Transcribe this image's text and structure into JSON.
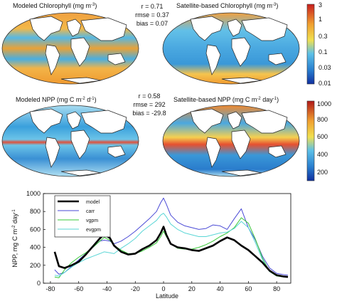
{
  "colors": {
    "model": "#000000",
    "carr": "#4a4ad6",
    "vgpm": "#37c837",
    "evgpm": "#5ad6d6",
    "ocean_chl_hi": "#f29a2e",
    "ocean_low": "#3aa0dc",
    "land": "#ffffff"
  },
  "panels": {
    "chl_model_title": "Modeled Chlorophyll (mg m",
    "chl_model_title_sup": "-3",
    "chl_model_title_end": ")",
    "chl_sat_title": "Satellite-based Chlorophyll (mg m",
    "chl_sat_title_sup": "-3",
    "chl_sat_title_end": ")",
    "npp_model_title": "Modeled NPP (mg C m",
    "npp_model_title_sup1": "-2",
    "npp_model_title_mid": " d",
    "npp_model_title_sup2": "-1",
    "npp_model_title_end": ")",
    "npp_sat_title": "Satellite-based NPP (mg C m",
    "npp_sat_title_sup1": "-2",
    "npp_sat_title_mid": " day",
    "npp_sat_title_sup2": "-1",
    "npp_sat_title_end": ")"
  },
  "stats": {
    "chl_r": "r = 0.71",
    "chl_rmse": "rmse = 0.37",
    "chl_bias": "bias = 0.07",
    "npp_r": "r = 0.58",
    "npp_rmse": "rmse = 292",
    "npp_bias": "bias = -29.8"
  },
  "colorbars": {
    "chl_ticks": [
      "3",
      "1",
      "0.3",
      "0.1",
      "0.03",
      "0.01"
    ],
    "chl_scale": "log",
    "npp_ticks": [
      "1000",
      "800",
      "600",
      "400",
      "200"
    ],
    "npp_scale": "linear"
  },
  "chart_data": {
    "type": "line",
    "xlabel": "Latitude",
    "ylabel_main": "NPP, mg C m",
    "ylabel_sup1": "-2",
    "ylabel_mid": " day",
    "ylabel_sup2": "-1",
    "xlim": [
      -85,
      90
    ],
    "ylim": [
      0,
      1000
    ],
    "xticks": [
      -80,
      -60,
      -40,
      -20,
      0,
      20,
      40,
      60,
      80
    ],
    "yticks": [
      0,
      200,
      400,
      600,
      800,
      1000
    ],
    "legend_position": "top-left",
    "series": [
      {
        "name": "model",
        "color": "#000000",
        "width": 2.6,
        "x": [
          -77,
          -74,
          -70,
          -65,
          -60,
          -55,
          -50,
          -45,
          -42,
          -38,
          -35,
          -30,
          -25,
          -20,
          -15,
          -10,
          -5,
          -2,
          0,
          2,
          5,
          10,
          15,
          20,
          25,
          30,
          35,
          40,
          45,
          50,
          55,
          60,
          65,
          70,
          75,
          80,
          85,
          88
        ],
        "y": [
          350,
          190,
          170,
          200,
          240,
          320,
          410,
          500,
          545,
          505,
          420,
          350,
          320,
          330,
          380,
          420,
          480,
          560,
          630,
          540,
          440,
          400,
          390,
          370,
          360,
          390,
          420,
          470,
          510,
          480,
          420,
          370,
          300,
          230,
          140,
          90,
          75,
          70
        ]
      },
      {
        "name": "carr",
        "color": "#4a4ad6",
        "width": 1,
        "x": [
          -77,
          -74,
          -70,
          -65,
          -60,
          -55,
          -50,
          -45,
          -42,
          -38,
          -35,
          -30,
          -25,
          -20,
          -15,
          -10,
          -5,
          -2,
          0,
          2,
          5,
          10,
          15,
          20,
          25,
          30,
          35,
          40,
          45,
          50,
          55,
          60,
          65,
          70,
          75,
          80,
          85,
          88
        ],
        "y": [
          150,
          100,
          120,
          190,
          260,
          330,
          400,
          470,
          480,
          470,
          440,
          470,
          520,
          580,
          650,
          720,
          800,
          900,
          950,
          880,
          760,
          680,
          640,
          620,
          600,
          610,
          650,
          640,
          600,
          720,
          830,
          620,
          480,
          300,
          170,
          110,
          95,
          90
        ]
      },
      {
        "name": "vgpm",
        "color": "#37c837",
        "width": 1,
        "x": [
          -77,
          -74,
          -70,
          -65,
          -60,
          -55,
          -50,
          -45,
          -42,
          -38,
          -35,
          -30,
          -25,
          -20,
          -15,
          -10,
          -5,
          -2,
          0,
          2,
          5,
          10,
          15,
          20,
          25,
          30,
          35,
          40,
          45,
          50,
          55,
          60,
          65,
          70,
          75,
          80,
          85,
          88
        ],
        "y": [
          70,
          60,
          150,
          230,
          290,
          340,
          400,
          470,
          510,
          480,
          420,
          370,
          330,
          330,
          360,
          400,
          450,
          520,
          580,
          520,
          440,
          390,
          380,
          380,
          400,
          430,
          470,
          520,
          560,
          620,
          730,
          670,
          490,
          280,
          130,
          80,
          70,
          70
        ]
      },
      {
        "name": "evgpm",
        "color": "#5ad6d6",
        "width": 1,
        "x": [
          -77,
          -74,
          -70,
          -65,
          -60,
          -55,
          -50,
          -45,
          -42,
          -38,
          -35,
          -30,
          -25,
          -20,
          -15,
          -10,
          -5,
          -2,
          0,
          2,
          5,
          10,
          15,
          20,
          25,
          30,
          35,
          40,
          45,
          50,
          55,
          60,
          65,
          70,
          75,
          80,
          85,
          88
        ],
        "y": [
          90,
          80,
          120,
          180,
          230,
          270,
          300,
          330,
          350,
          340,
          330,
          390,
          440,
          500,
          580,
          640,
          700,
          760,
          780,
          740,
          660,
          600,
          560,
          540,
          520,
          520,
          540,
          560,
          570,
          610,
          690,
          620,
          450,
          260,
          130,
          85,
          75,
          70
        ]
      }
    ]
  }
}
